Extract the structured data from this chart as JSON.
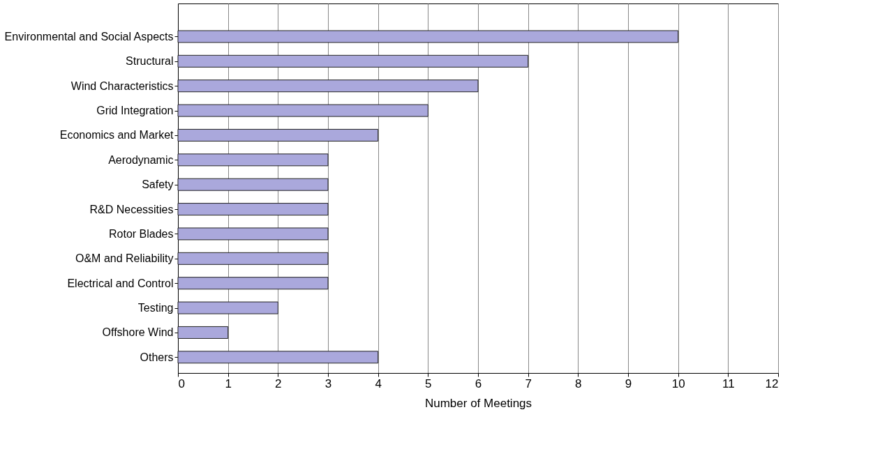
{
  "chart_data": {
    "type": "bar",
    "orientation": "horizontal",
    "xlabel": "Number of Meetings",
    "categories": [
      "Environmental and Social Aspects",
      "Structural",
      "Wind Characteristics",
      "Grid Integration",
      "Economics and Market",
      "Aerodynamic",
      "Safety",
      "R&D Necessities",
      "Rotor Blades",
      "O&M and Reliability",
      "Electrical and Control",
      "Testing",
      "Offshore Wind",
      "Others"
    ],
    "values": [
      10,
      7,
      6,
      5,
      4,
      3,
      3,
      3,
      3,
      3,
      3,
      2,
      1,
      4
    ],
    "color": "#aaa8dc",
    "xlim": [
      0,
      12
    ],
    "xticks": [
      0,
      1,
      2,
      3,
      4,
      5,
      6,
      7,
      8,
      9,
      10,
      11,
      12
    ],
    "grid": "x"
  }
}
